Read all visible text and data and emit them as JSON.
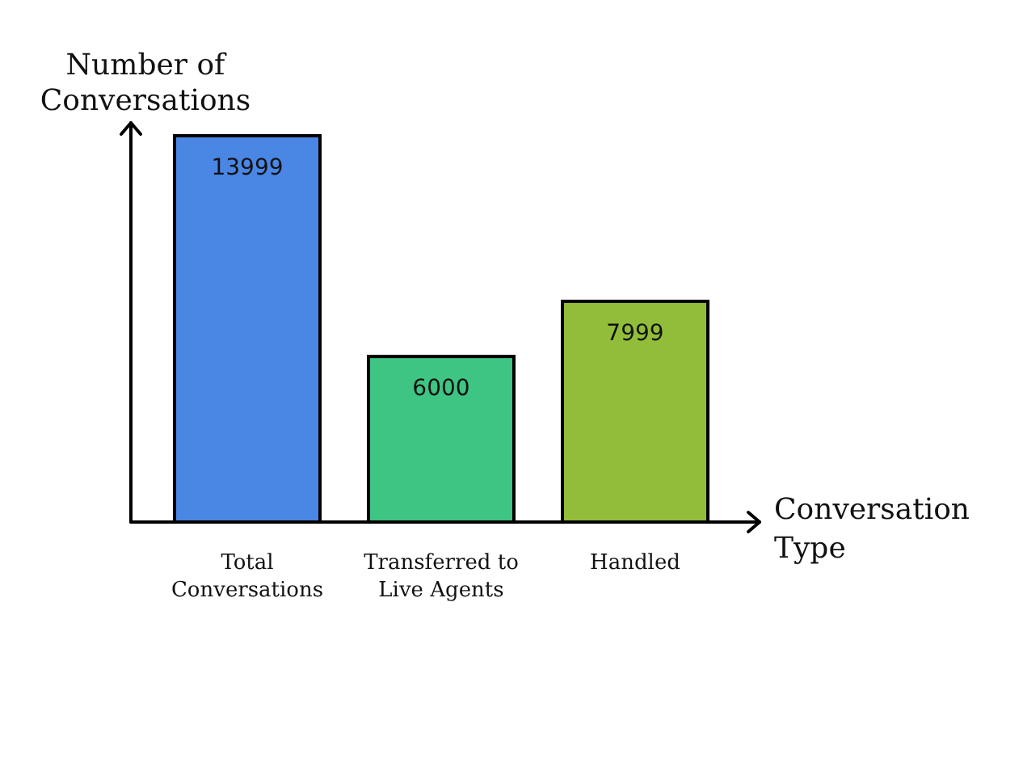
{
  "chart_data": {
    "type": "bar",
    "xlabel": "Conversation Type",
    "ylabel": "Number of Conversations",
    "categories": [
      "Total Conversations",
      "Transferred to Live Agents",
      "Handled"
    ],
    "values": [
      13999,
      6000,
      7999
    ],
    "colors": [
      "#4a86e4",
      "#3ec483",
      "#92bd3a"
    ],
    "data_labels": true
  }
}
